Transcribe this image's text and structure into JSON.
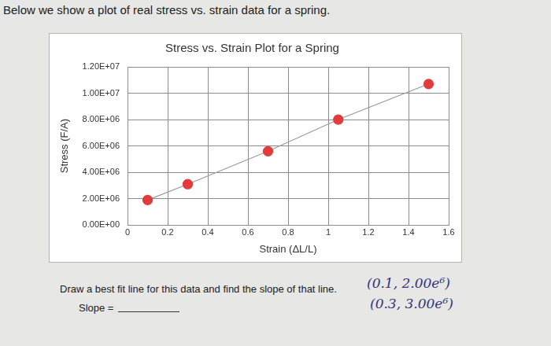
{
  "chart_data": {
    "type": "scatter",
    "title": "Stress vs. Strain Plot for a Spring",
    "x_label": "Strain (ΔL/L)",
    "y_label": "Stress (F/A)",
    "annotations": [
      "Below we show a plot of real stress vs. strain data for a spring.",
      "Draw a best fit line for this data and find the slope of that line.",
      "Slope =",
      "(0.1, 2.00e⁶)",
      "(0.3, 3.00e⁶)"
    ],
    "x": [
      0.1,
      0.3,
      0.7,
      1.05,
      1.5
    ],
    "series": [
      {
        "name": "Stress",
        "color": "#e23b3b",
        "marker": "circle",
        "line_style": "solid",
        "values": [
          1900000,
          3100000,
          5600000,
          8000000,
          10700000
        ]
      }
    ],
    "xlim": [
      0,
      1.6
    ],
    "xticks": [
      0,
      0.2,
      0.4,
      0.6,
      0.8,
      1,
      1.2,
      1.4,
      1.6
    ],
    "ylim": [
      0,
      12000000
    ],
    "yticks": [
      {
        "value": 0,
        "label": "0.00E+00"
      },
      {
        "value": 2000000,
        "label": "2.00E+06"
      },
      {
        "value": 4000000,
        "label": "4.00E+06"
      },
      {
        "value": 6000000,
        "label": "6.00E+06"
      },
      {
        "value": 8000000,
        "label": "8.00E+06"
      },
      {
        "value": 10000000,
        "label": "1.00E+07"
      },
      {
        "value": 12000000,
        "label": "1.20E+07"
      }
    ],
    "grid": true
  }
}
